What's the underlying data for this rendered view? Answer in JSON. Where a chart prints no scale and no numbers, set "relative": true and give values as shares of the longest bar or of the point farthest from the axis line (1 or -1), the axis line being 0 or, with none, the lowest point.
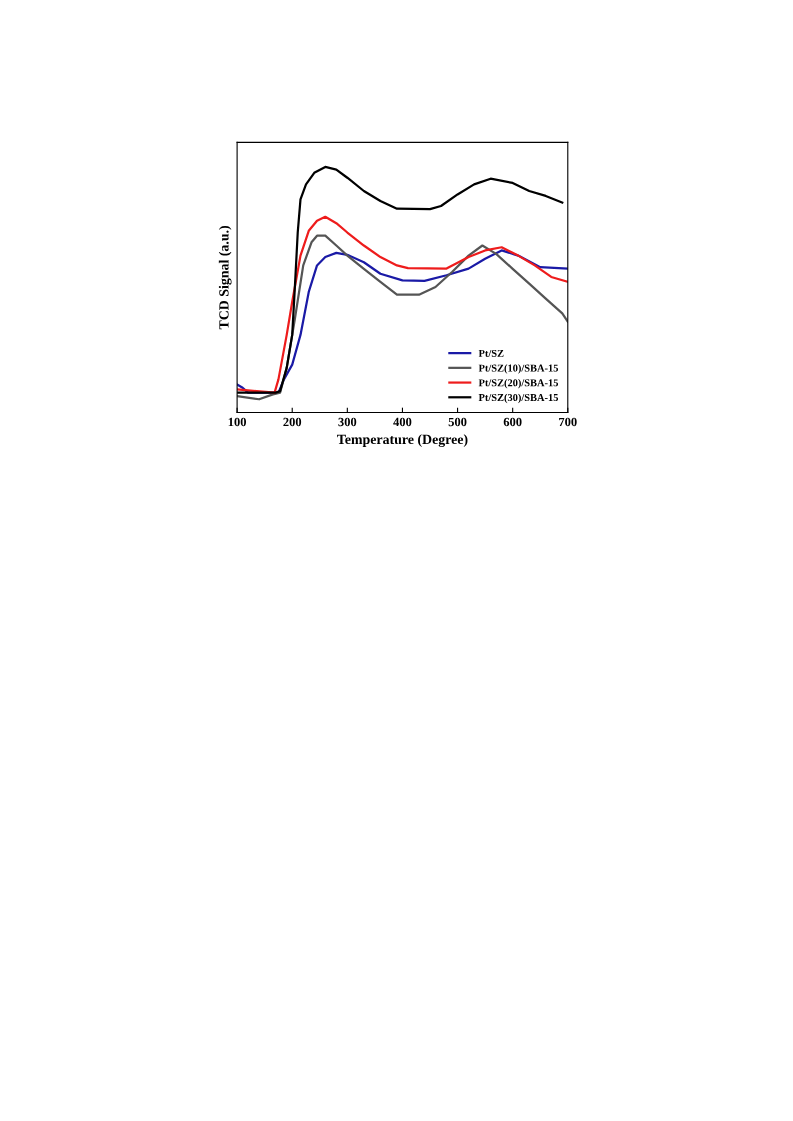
{
  "chart_data": {
    "type": "line",
    "xlabel": "Temperature (Degree)",
    "ylabel": "TCD Signal (a.u.)",
    "relative": true,
    "xlim": [
      100,
      700
    ],
    "xticks": [
      100,
      200,
      300,
      400,
      500,
      600,
      700
    ],
    "tick_labels": "x",
    "legend": "bottom right",
    "grid": false,
    "series": [
      {
        "name": "Pt/SZ",
        "color": "#1a1aa6",
        "x": [
          100,
          110,
          120,
          175,
          185,
          200,
          215,
          230,
          245,
          260,
          280,
          300,
          330,
          360,
          400,
          440,
          480,
          520,
          550,
          580,
          610,
          650,
          700
        ],
        "values": [
          0.114,
          0.101,
          0.081,
          0.081,
          0.135,
          0.195,
          0.316,
          0.491,
          0.599,
          0.633,
          0.65,
          0.642,
          0.612,
          0.565,
          0.538,
          0.536,
          0.559,
          0.586,
          0.626,
          0.66,
          0.639,
          0.592,
          0.586
        ]
      },
      {
        "name": "Pt/SZ(10)/SBA-15",
        "color": "#555555",
        "x": [
          100,
          140,
          165,
          178,
          190,
          205,
          220,
          235,
          245,
          260,
          280,
          300,
          330,
          360,
          390,
          430,
          460,
          490,
          520,
          545,
          570,
          600,
          630,
          660,
          690,
          700
        ],
        "values": [
          0.067,
          0.054,
          0.074,
          0.081,
          0.182,
          0.384,
          0.599,
          0.693,
          0.72,
          0.72,
          0.68,
          0.639,
          0.585,
          0.532,
          0.48,
          0.48,
          0.511,
          0.572,
          0.639,
          0.68,
          0.646,
          0.585,
          0.525,
          0.464,
          0.404,
          0.37
        ]
      },
      {
        "name": "Pt/SZ(20)/SBA-15",
        "color": "#ee1c1c",
        "x": [
          100,
          168,
          175,
          190,
          200,
          215,
          230,
          245,
          260,
          280,
          300,
          330,
          360,
          390,
          410,
          480,
          520,
          550,
          580,
          610,
          640,
          670,
          700
        ],
        "values": [
          0.094,
          0.081,
          0.135,
          0.316,
          0.451,
          0.639,
          0.74,
          0.781,
          0.797,
          0.771,
          0.733,
          0.68,
          0.633,
          0.599,
          0.588,
          0.586,
          0.633,
          0.66,
          0.673,
          0.639,
          0.599,
          0.552,
          0.532
        ]
      },
      {
        "name": "Pt/SZ(30)/SBA-15",
        "color": "#000000",
        "x": [
          100,
          170,
          178,
          190,
          200,
          205,
          210,
          215,
          225,
          240,
          260,
          280,
          300,
          330,
          360,
          390,
          450,
          470,
          500,
          530,
          560,
          600,
          630,
          660,
          690
        ],
        "values": [
          0.081,
          0.081,
          0.087,
          0.182,
          0.316,
          0.518,
          0.733,
          0.868,
          0.929,
          0.976,
          1,
          0.989,
          0.956,
          0.902,
          0.861,
          0.83,
          0.828,
          0.841,
          0.888,
          0.929,
          0.952,
          0.935,
          0.902,
          0.882,
          0.855
        ]
      }
    ]
  }
}
